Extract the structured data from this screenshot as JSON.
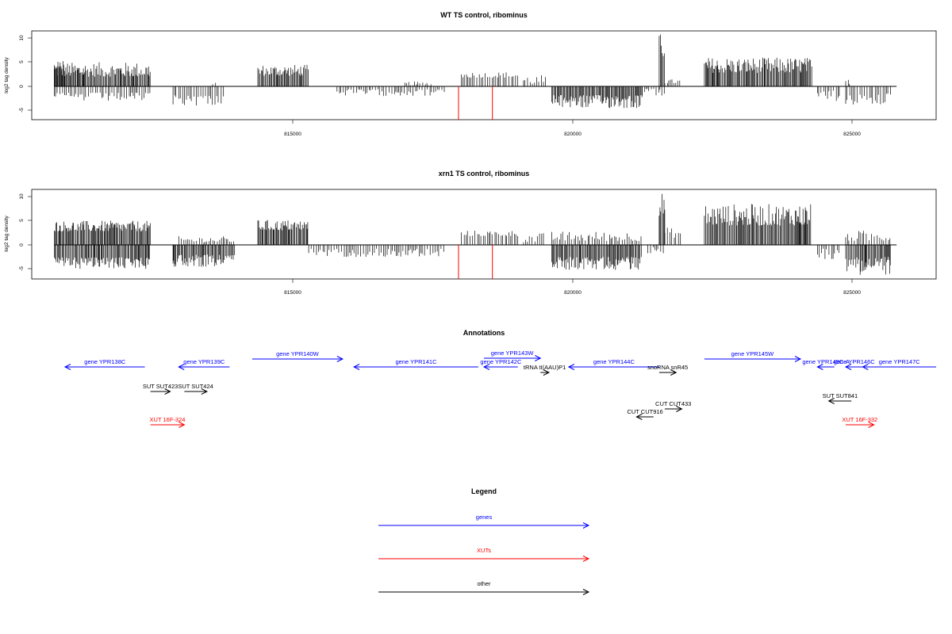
{
  "colors": {
    "gene": "#0000ff",
    "xut": "#ff0000",
    "other": "#000000",
    "marker": "#ff0000",
    "axis": "#000000"
  },
  "panels": [
    {
      "title": "WT TS control, ribominus",
      "ylabel": "log2 tag density"
    },
    {
      "title": "xrn1 TS control, ribominus",
      "ylabel": "log2 tag density"
    }
  ],
  "axis": {
    "x_ticks": [
      "815000",
      "820000",
      "825000"
    ],
    "y_ticks": [
      "10",
      "5",
      "0",
      "-5"
    ]
  },
  "annotations_title": "Annotations",
  "legend_title": "Legend",
  "chart_data": [
    {
      "type": "bar",
      "title": "WT TS control, ribominus",
      "xlabel": "",
      "ylabel": "log2 tag density",
      "xlim": [
        810600,
        826600
      ],
      "ylim": [
        -7,
        11.5
      ],
      "x_ticks": [
        815000,
        820000,
        825000
      ],
      "y_ticks": [
        -5,
        0,
        5,
        10
      ],
      "baseline": 0,
      "positive_segments": [
        [
          811000,
          812700,
          2.0,
          5.0
        ],
        [
          811000,
          811200,
          3.0,
          5.3
        ],
        [
          813800,
          813900,
          0.3,
          1.0
        ],
        [
          814600,
          815500,
          2.2,
          4.5
        ],
        [
          817200,
          817700,
          0.2,
          1.0
        ],
        [
          818200,
          819200,
          1.8,
          3.0
        ],
        [
          819300,
          819700,
          0.4,
          2.4
        ],
        [
          821700,
          821800,
          6.0,
          11.0
        ],
        [
          821800,
          822100,
          0.6,
          1.5
        ],
        [
          822500,
          824400,
          2.8,
          6.0
        ],
        [
          825000,
          825100,
          0.5,
          1.5
        ]
      ],
      "negative_segments": [
        [
          811000,
          812700,
          -1.3,
          -3.2
        ],
        [
          813100,
          814000,
          -1.8,
          -4.0
        ],
        [
          816000,
          817900,
          -0.6,
          -2.0
        ],
        [
          819800,
          821400,
          -1.8,
          -4.6
        ],
        [
          821400,
          821800,
          -0.5,
          -2.0
        ],
        [
          824500,
          824900,
          -0.8,
          -3.8
        ],
        [
          825000,
          825800,
          -1.5,
          -4.0
        ]
      ],
      "markers": [
        818150,
        818750
      ],
      "marker_range": [
        -7,
        0
      ]
    },
    {
      "type": "bar",
      "title": "xrn1 TS control, ribominus",
      "xlabel": "",
      "ylabel": "log2 tag density",
      "xlim": [
        810600,
        826600
      ],
      "ylim": [
        -7,
        11.5
      ],
      "x_ticks": [
        815000,
        820000,
        825000
      ],
      "y_ticks": [
        -5,
        0,
        5,
        10
      ],
      "baseline": 0,
      "positive_segments": [
        [
          811000,
          812700,
          2.8,
          5.0
        ],
        [
          813200,
          814200,
          0.5,
          1.8
        ],
        [
          814600,
          815500,
          3.0,
          5.2
        ],
        [
          818200,
          819200,
          1.8,
          3.0
        ],
        [
          819300,
          819700,
          0.5,
          2.5
        ],
        [
          819800,
          821400,
          0.8,
          2.8
        ],
        [
          821700,
          821800,
          6.0,
          11.0
        ],
        [
          821800,
          822100,
          1.5,
          3.6
        ],
        [
          822500,
          824400,
          4.0,
          8.5
        ],
        [
          825000,
          825800,
          0.8,
          3.0
        ]
      ],
      "negative_segments": [
        [
          811000,
          812700,
          -2.6,
          -5.0
        ],
        [
          813100,
          814200,
          -2.0,
          -4.6
        ],
        [
          815500,
          817900,
          -0.8,
          -2.5
        ],
        [
          819800,
          821400,
          -2.5,
          -5.2
        ],
        [
          821500,
          821800,
          -0.5,
          -1.8
        ],
        [
          824500,
          824900,
          -0.8,
          -3.0
        ],
        [
          825000,
          825800,
          -2.5,
          -6.2
        ]
      ],
      "markers": [
        818150,
        818750
      ],
      "marker_range": [
        -7,
        0
      ]
    }
  ],
  "annotation_features": [
    {
      "label": "gene YPR138C",
      "kind": "gene",
      "x0": 811100,
      "x1": 812600,
      "dir": "left",
      "row": 2
    },
    {
      "label": "gene YPR139C",
      "kind": "gene",
      "x0": 813200,
      "x1": 814100,
      "dir": "left",
      "row": 2
    },
    {
      "label": "gene YPR140W",
      "kind": "gene",
      "x0": 814500,
      "x1": 816100,
      "dir": "right",
      "row": 1
    },
    {
      "label": "gene YPR141C",
      "kind": "gene",
      "x0": 816300,
      "x1": 818500,
      "dir": "left",
      "row": 2
    },
    {
      "label": "gene YPR142C",
      "kind": "gene",
      "x0": 818600,
      "x1": 819200,
      "dir": "left",
      "row": 2
    },
    {
      "label": "gene YPR143W",
      "kind": "gene",
      "x0": 818600,
      "x1": 819600,
      "dir": "right",
      "row": 0
    },
    {
      "label": "gene YPR144C",
      "kind": "gene",
      "x0": 820100,
      "x1": 821700,
      "dir": "left",
      "row": 2
    },
    {
      "label": "gene YPR145W",
      "kind": "gene",
      "x0": 822500,
      "x1": 824200,
      "dir": "right",
      "row": 1
    },
    {
      "label": "gene YPR145C-A",
      "kind": "gene",
      "x0": 824500,
      "x1": 824800,
      "dir": "left",
      "row": 2
    },
    {
      "label": "gene YPR146C",
      "kind": "gene",
      "x0": 825000,
      "x1": 825300,
      "dir": "left",
      "row": 2
    },
    {
      "label": "gene YPR147C",
      "kind": "gene",
      "x0": 825300,
      "x1": 826600,
      "dir": "left",
      "row": 2
    },
    {
      "label": "tRNA tI(AAU)P1",
      "kind": "other",
      "x0": 819600,
      "x1": 819750,
      "dir": "right",
      "row": 3
    },
    {
      "label": "snoRNA snR45",
      "kind": "other",
      "x0": 821700,
      "x1": 822000,
      "dir": "right",
      "row": 3
    },
    {
      "label": "SUT SUT423",
      "kind": "other",
      "x0": 812700,
      "x1": 813050,
      "dir": "right",
      "row": 5
    },
    {
      "label": "SUT SUT424",
      "kind": "other",
      "x0": 813300,
      "x1": 813700,
      "dir": "right",
      "row": 5
    },
    {
      "label": "SUT SUT841",
      "kind": "other",
      "x0": 824700,
      "x1": 825100,
      "dir": "left",
      "row": 6
    },
    {
      "label": "CUT CUT433",
      "kind": "other",
      "x0": 821800,
      "x1": 822100,
      "dir": "right",
      "row": 7
    },
    {
      "label": "CUT CUT916",
      "kind": "other",
      "x0": 821300,
      "x1": 821600,
      "dir": "left",
      "row": 8
    },
    {
      "label": "XUT 16F-324",
      "kind": "xut",
      "x0": 812700,
      "x1": 813300,
      "dir": "right",
      "row": 9
    },
    {
      "label": "XUT 16F-332",
      "kind": "xut",
      "x0": 825000,
      "x1": 825500,
      "dir": "right",
      "row": 9
    }
  ],
  "legend": [
    {
      "label": "genes",
      "kind": "gene"
    },
    {
      "label": "XUTs",
      "kind": "xut"
    },
    {
      "label": "other",
      "kind": "other"
    }
  ]
}
